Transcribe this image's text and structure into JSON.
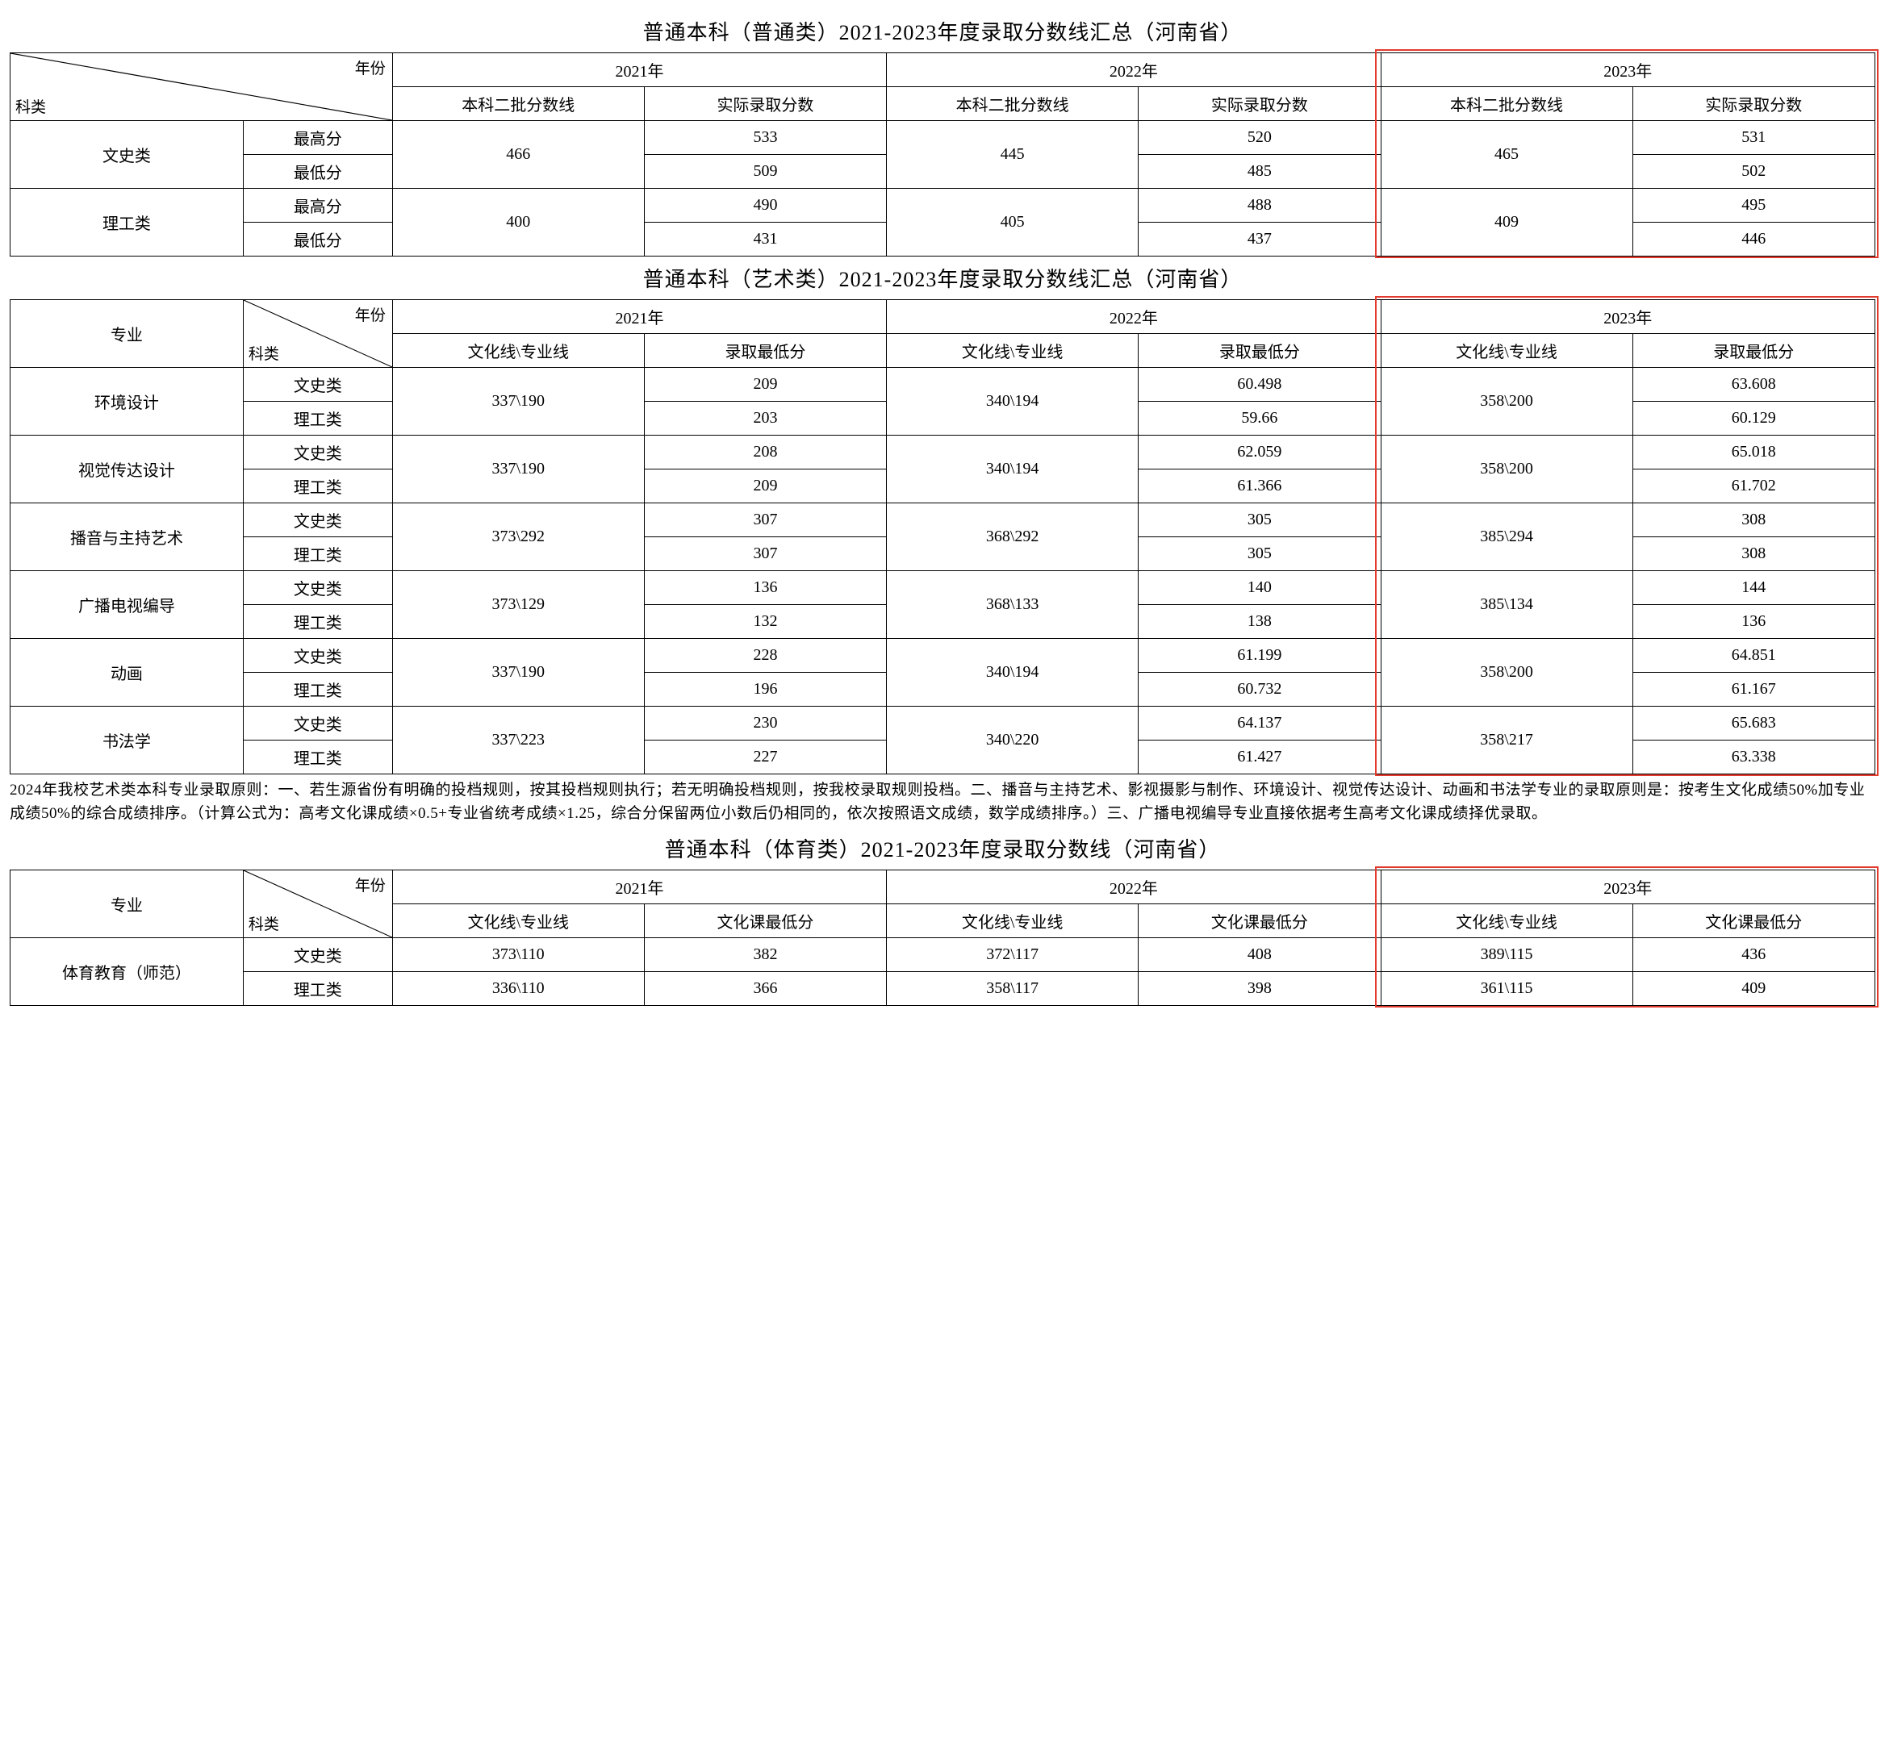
{
  "table1": {
    "title": "普通本科（普通类）2021-2023年度录取分数线汇总（河南省）",
    "diag_top": "年份",
    "diag_bot": "科类",
    "years": [
      "2021年",
      "2022年",
      "2023年"
    ],
    "sub_a": "本科二批分数线",
    "sub_b": "实际录取分数",
    "rows": [
      {
        "cat": "文史类",
        "lv": [
          "最高分",
          "最低分"
        ],
        "y2021_line": "466",
        "y2021_act": [
          "533",
          "509"
        ],
        "y2022_line": "445",
        "y2022_act": [
          "520",
          "485"
        ],
        "y2023_line": "465",
        "y2023_act": [
          "531",
          "502"
        ]
      },
      {
        "cat": "理工类",
        "lv": [
          "最高分",
          "最低分"
        ],
        "y2021_line": "400",
        "y2021_act": [
          "490",
          "431"
        ],
        "y2022_line": "405",
        "y2022_act": [
          "488",
          "437"
        ],
        "y2023_line": "409",
        "y2023_act": [
          "495",
          "446"
        ]
      }
    ]
  },
  "table2": {
    "title": "普通本科（艺术类）2021-2023年度录取分数线汇总（河南省）",
    "col_major": "专业",
    "diag_top": "年份",
    "diag_bot": "科类",
    "years": [
      "2021年",
      "2022年",
      "2023年"
    ],
    "sub_a": "文化线\\专业线",
    "sub_b": "录取最低分",
    "majors": [
      {
        "name": "环境设计",
        "sub": [
          "文史类",
          "理工类"
        ],
        "y1_line": "337\\190",
        "y1_min": [
          "209",
          "203"
        ],
        "y2_line": "340\\194",
        "y2_min": [
          "60.498",
          "59.66"
        ],
        "y3_line": "358\\200",
        "y3_min": [
          "63.608",
          "60.129"
        ]
      },
      {
        "name": "视觉传达设计",
        "sub": [
          "文史类",
          "理工类"
        ],
        "y1_line": "337\\190",
        "y1_min": [
          "208",
          "209"
        ],
        "y2_line": "340\\194",
        "y2_min": [
          "62.059",
          "61.366"
        ],
        "y3_line": "358\\200",
        "y3_min": [
          "65.018",
          "61.702"
        ]
      },
      {
        "name": "播音与主持艺术",
        "sub": [
          "文史类",
          "理工类"
        ],
        "y1_line": "373\\292",
        "y1_min": [
          "307",
          "307"
        ],
        "y2_line": "368\\292",
        "y2_min": [
          "305",
          "305"
        ],
        "y3_line": "385\\294",
        "y3_min": [
          "308",
          "308"
        ]
      },
      {
        "name": "广播电视编导",
        "sub": [
          "文史类",
          "理工类"
        ],
        "y1_line": "373\\129",
        "y1_min": [
          "136",
          "132"
        ],
        "y2_line": "368\\133",
        "y2_min": [
          "140",
          "138"
        ],
        "y3_line": "385\\134",
        "y3_min": [
          "144",
          "136"
        ]
      },
      {
        "name": "动画",
        "sub": [
          "文史类",
          "理工类"
        ],
        "y1_line": "337\\190",
        "y1_min": [
          "228",
          "196"
        ],
        "y2_line": "340\\194",
        "y2_min": [
          "61.199",
          "60.732"
        ],
        "y3_line": "358\\200",
        "y3_min": [
          "64.851",
          "61.167"
        ]
      },
      {
        "name": "书法学",
        "sub": [
          "文史类",
          "理工类"
        ],
        "y1_line": "337\\223",
        "y1_min": [
          "230",
          "227"
        ],
        "y2_line": "340\\220",
        "y2_min": [
          "64.137",
          "61.427"
        ],
        "y3_line": "358\\217",
        "y3_min": [
          "65.683",
          "63.338"
        ]
      }
    ],
    "note": "2024年我校艺术类本科专业录取原则：一、若生源省份有明确的投档规则，按其投档规则执行；若无明确投档规则，按我校录取规则投档。二、播音与主持艺术、影视摄影与制作、环境设计、视觉传达设计、动画和书法学专业的录取原则是：按考生文化成绩50%加专业成绩50%的综合成绩排序。（计算公式为：高考文化课成绩×0.5+专业省统考成绩×1.25，综合分保留两位小数后仍相同的，依次按照语文成绩，数学成绩排序。）三、广播电视编导专业直接依据考生高考文化课成绩择优录取。"
  },
  "table3": {
    "title": "普通本科（体育类）2021-2023年度录取分数线（河南省）",
    "col_major": "专业",
    "diag_top": "年份",
    "diag_bot": "科类",
    "years": [
      "2021年",
      "2022年",
      "2023年"
    ],
    "sub_a": "文化线\\专业线",
    "sub_b": "文化课最低分",
    "majors": [
      {
        "name": "体育教育（师范）",
        "sub": [
          "文史类",
          "理工类"
        ],
        "y1_line": [
          "373\\110",
          "336\\110"
        ],
        "y1_min": [
          "382",
          "366"
        ],
        "y2_line": [
          "372\\117",
          "358\\117"
        ],
        "y2_min": [
          "408",
          "398"
        ],
        "y3_line": [
          "389\\115",
          "361\\115"
        ],
        "y3_min": [
          "436",
          "409"
        ]
      }
    ]
  },
  "colors": {
    "red": "#e23b2e"
  }
}
